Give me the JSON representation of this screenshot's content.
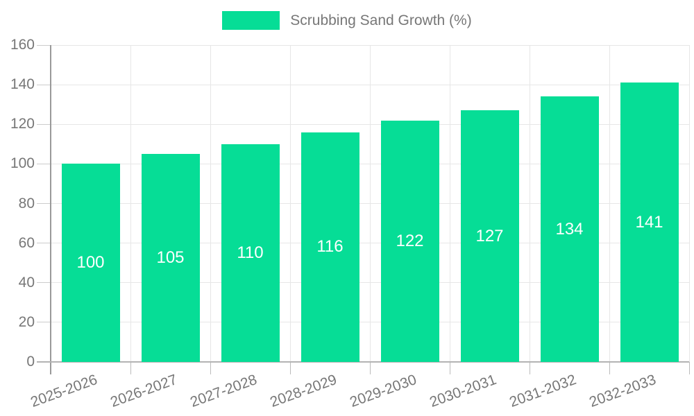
{
  "legend": {
    "label": "Scrubbing Sand Growth (%)"
  },
  "colors": {
    "bar": "#06DD96",
    "bar_value_text": "#ffffff",
    "axis_text": "#777777",
    "grid_line": "#e6e6e6",
    "axis_line": "#999999",
    "baseline": "#b3b3b3",
    "tick": "#cccccc"
  },
  "chart_data": {
    "type": "bar",
    "title": "Scrubbing Sand Growth (%)",
    "categories": [
      "2025-2026",
      "2026-2027",
      "2027-2028",
      "2028-2029",
      "2029-2030",
      "2030-2031",
      "2031-2032",
      "2032-2033"
    ],
    "values": [
      100,
      105,
      110,
      116,
      122,
      127,
      134,
      141
    ],
    "series": [
      {
        "name": "Scrubbing Sand Growth (%)",
        "values": [
          100,
          105,
          110,
          116,
          122,
          127,
          134,
          141
        ]
      }
    ],
    "xlabel": "",
    "ylabel": "",
    "ylim": [
      0,
      160
    ],
    "yticks": [
      0,
      20,
      40,
      60,
      80,
      100,
      120,
      140,
      160
    ],
    "grid": true,
    "legend_position": "top-center",
    "bar_value_labels": "inside-middle",
    "x_label_rotation_deg": -20
  }
}
